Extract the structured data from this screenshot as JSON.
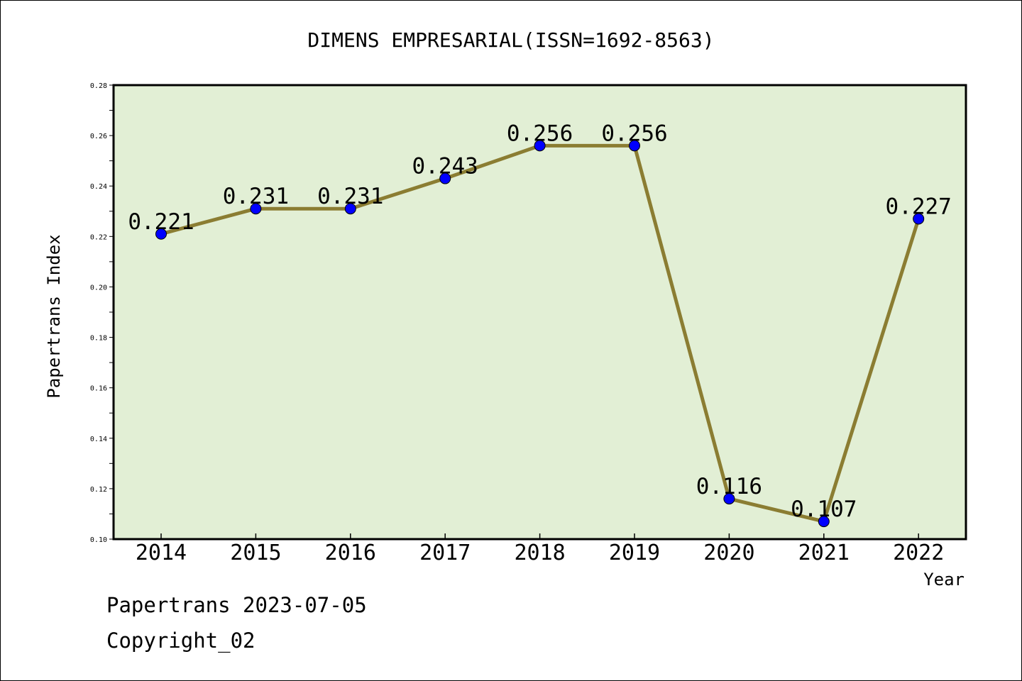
{
  "chart_data": {
    "type": "line",
    "title": "DIMENS EMPRESARIAL(ISSN=1692-8563)",
    "xlabel": "Year",
    "ylabel": "Papertrans Index",
    "categories": [
      "2014",
      "2015",
      "2016",
      "2017",
      "2018",
      "2019",
      "2020",
      "2021",
      "2022"
    ],
    "series": [
      {
        "values": [
          0.221,
          0.231,
          0.231,
          0.243,
          0.256,
          0.256,
          0.116,
          0.107,
          0.227
        ],
        "data_labels": [
          "0.221",
          "0.231",
          "0.231",
          "0.243",
          "0.256",
          "0.256",
          "0.116",
          "0.107",
          "0.227"
        ]
      }
    ],
    "ylim": [
      0.1,
      0.28
    ],
    "y_ticks": [
      "0.10",
      "0.12",
      "0.14",
      "0.16",
      "0.18",
      "0.20",
      "0.22",
      "0.24",
      "0.26",
      "0.28"
    ],
    "grid": false,
    "legend": "none",
    "colors": {
      "plot_background": "#e2efd5",
      "line": "#8b7d32",
      "marker": "#0000ff"
    }
  },
  "footer": {
    "date_line": "Papertrans 2023-07-05",
    "copyright": "Copyright_02"
  }
}
